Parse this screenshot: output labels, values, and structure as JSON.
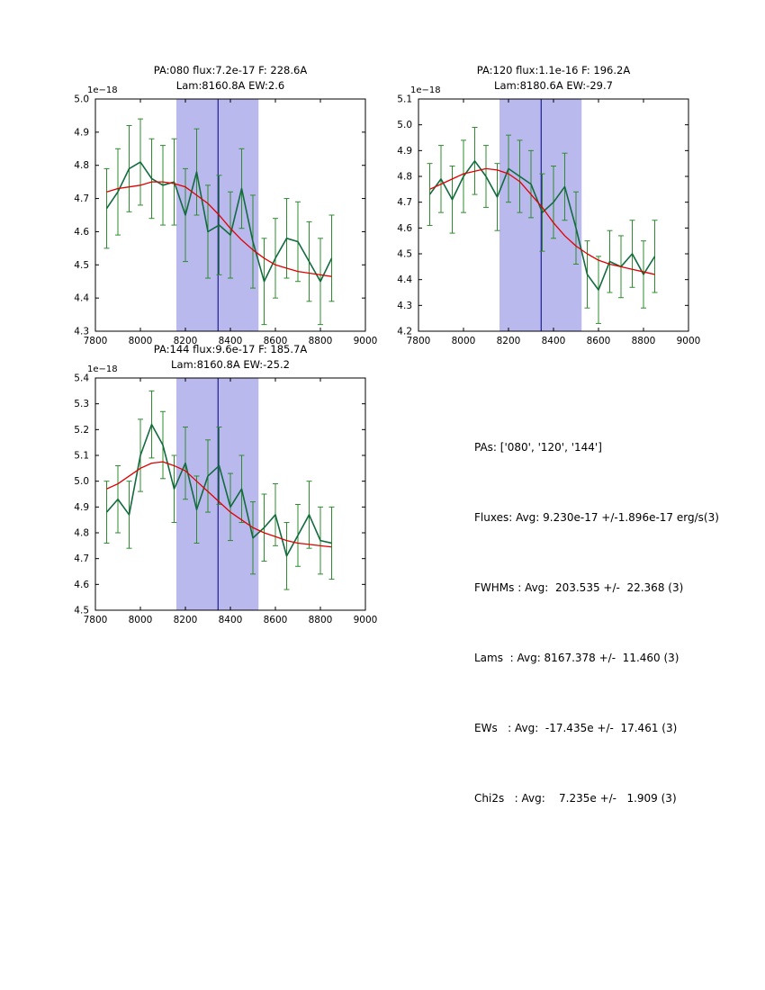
{
  "colors": {
    "band": "#b9b9ee",
    "vline": "#000080",
    "data_line": "#116b3e",
    "error_bar": "#2e8b2e",
    "fit_line": "#e00000",
    "axis": "#000000"
  },
  "summary": {
    "lines": [
      "PAs: ['080', '120', '144']",
      "Fluxes: Avg: 9.230e-17 +/-1.896e-17 erg/s(3)",
      "FWHMs : Avg:  203.535 +/-  22.368 (3)",
      "Lams  : Avg: 8167.378 +/-  11.460 (3)",
      "EWs   : Avg:  -17.435e +/-  17.461 (3)",
      "Chi2s   : Avg:    7.235e +/-   1.909 (3)"
    ]
  },
  "chart_data": [
    {
      "type": "line",
      "title_line1": "PA:080 flux:7.2e-17 F: 228.6A",
      "title_line2": "Lam:8160.8A EW:2.6",
      "offset_label": "1e−18",
      "xlim": [
        7800,
        9000
      ],
      "ylim": [
        4.3,
        5.0
      ],
      "xticks": [
        7800,
        8000,
        8200,
        8400,
        8600,
        8800,
        9000
      ],
      "yticks": [
        4.3,
        4.4,
        4.5,
        4.6,
        4.7,
        4.8,
        4.9,
        5.0
      ],
      "band": [
        8160,
        8525
      ],
      "vline": 8345,
      "x": [
        7850,
        7900,
        7950,
        8000,
        8050,
        8100,
        8150,
        8200,
        8250,
        8300,
        8350,
        8400,
        8450,
        8500,
        8550,
        8600,
        8650,
        8700,
        8750,
        8800,
        8850
      ],
      "y": [
        4.67,
        4.72,
        4.79,
        4.81,
        4.76,
        4.74,
        4.75,
        4.65,
        4.78,
        4.6,
        4.62,
        4.59,
        4.73,
        4.57,
        4.45,
        4.52,
        4.58,
        4.57,
        4.51,
        4.45,
        4.52
      ],
      "yerr": [
        0.12,
        0.13,
        0.13,
        0.13,
        0.12,
        0.12,
        0.13,
        0.14,
        0.13,
        0.14,
        0.15,
        0.13,
        0.12,
        0.14,
        0.13,
        0.12,
        0.12,
        0.12,
        0.12,
        0.13,
        0.13
      ],
      "fit": [
        4.72,
        4.73,
        4.735,
        4.74,
        4.75,
        4.75,
        4.745,
        4.735,
        4.71,
        4.685,
        4.65,
        4.61,
        4.575,
        4.545,
        4.52,
        4.5,
        4.49,
        4.48,
        4.475,
        4.47,
        4.465
      ]
    },
    {
      "type": "line",
      "title_line1": "PA:120 flux:1.1e-16 F: 196.2A",
      "title_line2": "Lam:8180.6A EW:-29.7",
      "offset_label": "1e−18",
      "xlim": [
        7800,
        9000
      ],
      "ylim": [
        4.2,
        5.1
      ],
      "xticks": [
        7800,
        8000,
        8200,
        8400,
        8600,
        8800,
        9000
      ],
      "yticks": [
        4.2,
        4.3,
        4.4,
        4.5,
        4.6,
        4.7,
        4.8,
        4.9,
        5.0,
        5.1
      ],
      "band": [
        8160,
        8525
      ],
      "vline": 8345,
      "x": [
        7850,
        7900,
        7950,
        8000,
        8050,
        8100,
        8150,
        8200,
        8250,
        8300,
        8350,
        8400,
        8450,
        8500,
        8550,
        8600,
        8650,
        8700,
        8750,
        8800,
        8850
      ],
      "y": [
        4.73,
        4.79,
        4.71,
        4.8,
        4.86,
        4.8,
        4.72,
        4.83,
        4.8,
        4.77,
        4.66,
        4.7,
        4.76,
        4.6,
        4.42,
        4.36,
        4.47,
        4.45,
        4.5,
        4.42,
        4.49
      ],
      "yerr": [
        0.12,
        0.13,
        0.13,
        0.14,
        0.13,
        0.12,
        0.13,
        0.13,
        0.14,
        0.13,
        0.15,
        0.14,
        0.13,
        0.14,
        0.13,
        0.13,
        0.12,
        0.12,
        0.13,
        0.13,
        0.14
      ],
      "fit": [
        4.75,
        4.77,
        4.79,
        4.81,
        4.82,
        4.83,
        4.825,
        4.81,
        4.78,
        4.73,
        4.68,
        4.62,
        4.57,
        4.53,
        4.5,
        4.475,
        4.46,
        4.45,
        4.44,
        4.43,
        4.42
      ]
    },
    {
      "type": "line",
      "title_line1": "PA:144 flux:9.6e-17 F: 185.7A",
      "title_line2": "Lam:8160.8A EW:-25.2",
      "offset_label": "1e−18",
      "xlim": [
        7800,
        9000
      ],
      "ylim": [
        4.5,
        5.4
      ],
      "xticks": [
        7800,
        8000,
        8200,
        8400,
        8600,
        8800,
        9000
      ],
      "yticks": [
        4.5,
        4.6,
        4.7,
        4.8,
        4.9,
        5.0,
        5.1,
        5.2,
        5.3,
        5.4
      ],
      "band": [
        8160,
        8525
      ],
      "vline": 8345,
      "x": [
        7850,
        7900,
        7950,
        8000,
        8050,
        8100,
        8150,
        8200,
        8250,
        8300,
        8350,
        8400,
        8450,
        8500,
        8550,
        8600,
        8650,
        8700,
        8750,
        8800,
        8850
      ],
      "y": [
        4.88,
        4.93,
        4.87,
        5.1,
        5.22,
        5.14,
        4.97,
        5.07,
        4.89,
        5.02,
        5.06,
        4.9,
        4.97,
        4.78,
        4.82,
        4.87,
        4.71,
        4.79,
        4.87,
        4.77,
        4.76
      ],
      "yerr": [
        0.12,
        0.13,
        0.13,
        0.14,
        0.13,
        0.13,
        0.13,
        0.14,
        0.13,
        0.14,
        0.15,
        0.13,
        0.13,
        0.14,
        0.13,
        0.12,
        0.13,
        0.12,
        0.13,
        0.13,
        0.14
      ],
      "fit": [
        4.97,
        4.99,
        5.02,
        5.05,
        5.07,
        5.075,
        5.06,
        5.04,
        5.0,
        4.96,
        4.92,
        4.88,
        4.85,
        4.82,
        4.8,
        4.785,
        4.77,
        4.76,
        4.755,
        4.75,
        4.745
      ]
    }
  ]
}
